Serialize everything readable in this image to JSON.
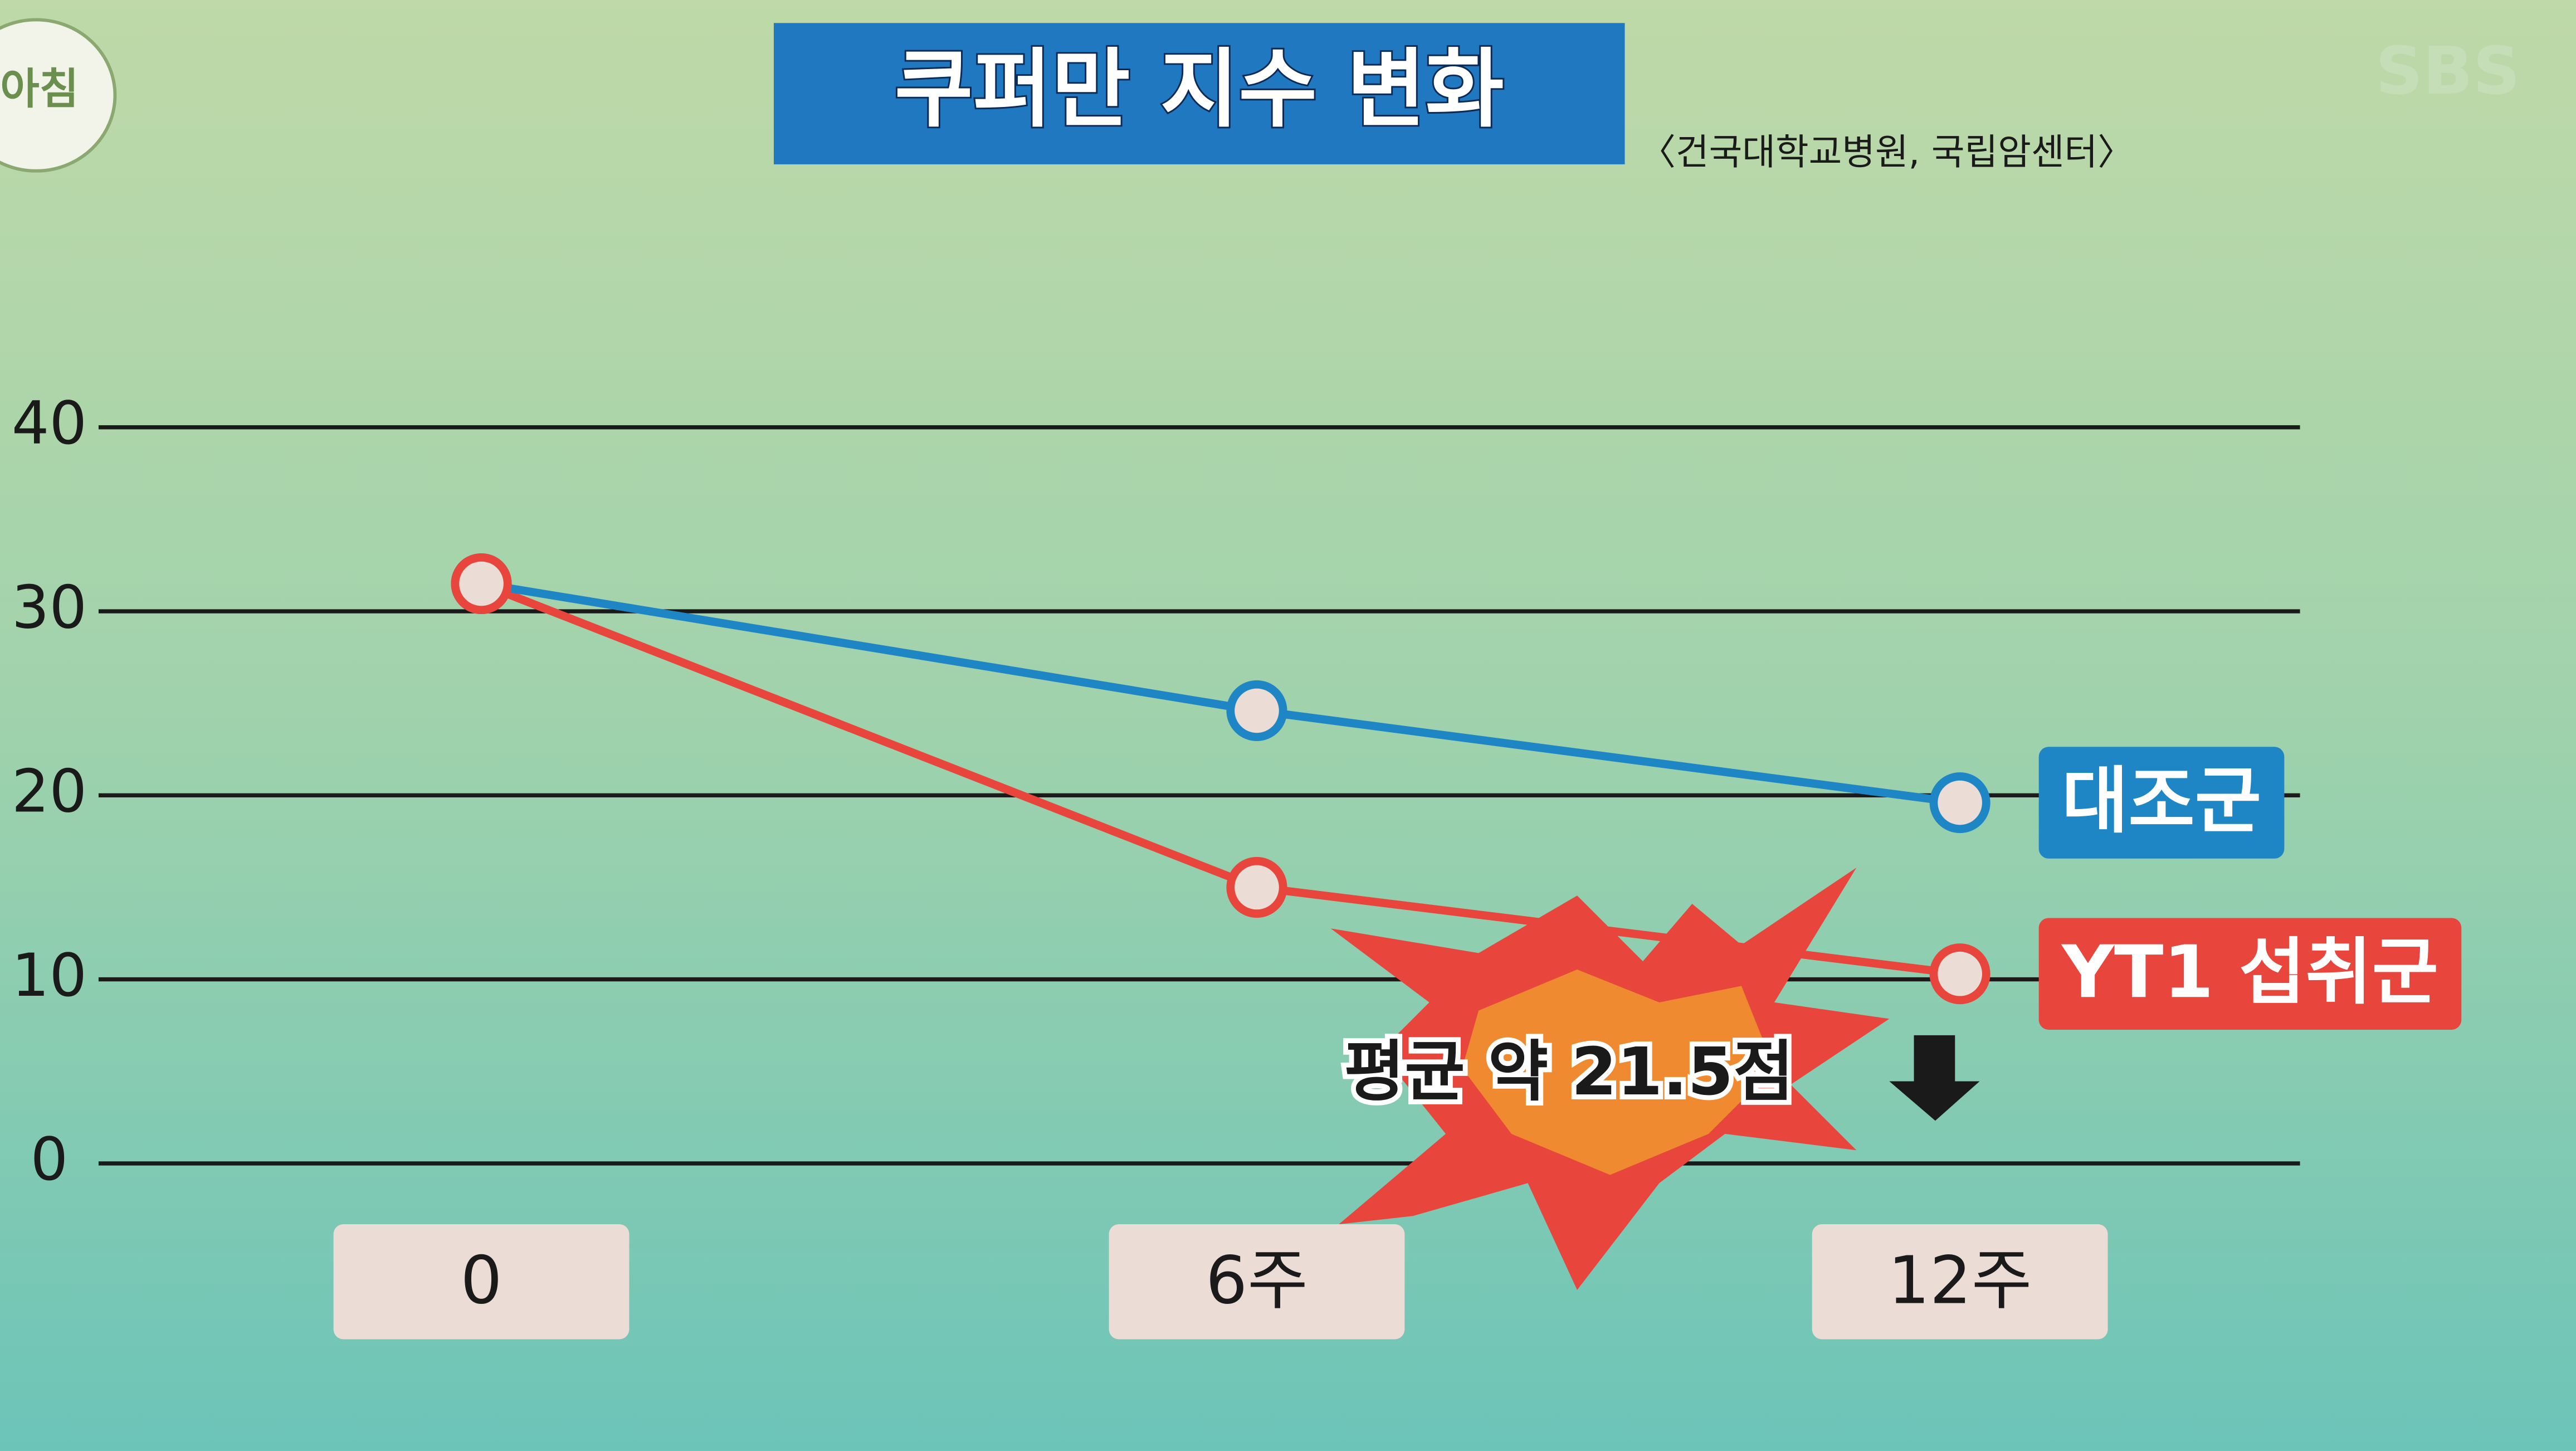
{
  "chart_data": {
    "type": "line",
    "title": "쿠퍼만 지수 변화",
    "subtitle": "〈건국대학교병원, 국립암센터〉",
    "annotation": "평균 약 21.5점",
    "logo_text": "아침",
    "watermark": "SBS",
    "categories": [
      "0",
      "6주",
      "12주"
    ],
    "series": [
      {
        "name": "대조군",
        "color": "#1f86c6",
        "values": [
          31.5,
          24.6,
          19.6
        ]
      },
      {
        "name": "YT1 섭취군",
        "color": "#e8453c",
        "values": [
          31.5,
          15.0,
          10.3
        ]
      }
    ],
    "ylim": [
      0,
      40
    ],
    "yticks": [
      0,
      10,
      20,
      30,
      40
    ],
    "grid": true
  }
}
